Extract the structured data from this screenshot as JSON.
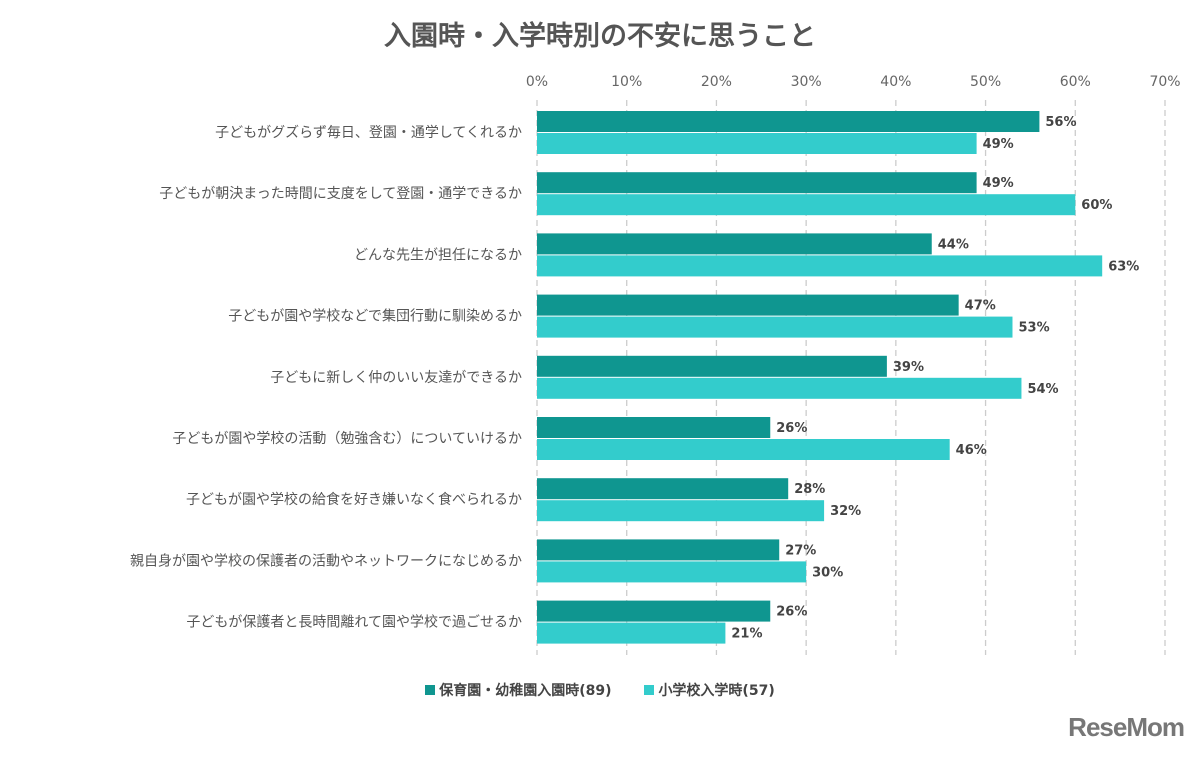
{
  "chart_data": {
    "type": "bar",
    "orientation": "horizontal",
    "title": "入園時・入学時別の不安に思うこと",
    "categories": [
      "子どもがグズらず毎日、登園・通学してくれるか",
      "子どもが朝決まった時間に支度をして登園・通学できるか",
      "どんな先生が担任になるか",
      "子どもが園や学校などで集団行動に馴染めるか",
      "子どもに新しく仲のいい友達ができるか",
      "子どもが園や学校の活動（勉強含む）についていけるか",
      "子どもが園や学校の給食を好き嫌いなく食べられるか",
      "親自身が園や学校の保護者の活動やネットワークになじめるか",
      "子どもが保護者と長時間離れて園や学校で過ごせるか"
    ],
    "series": [
      {
        "name": "保育園・幼稚園入園時(89)",
        "color": "#0f9690",
        "values": [
          56,
          49,
          44,
          47,
          39,
          26,
          28,
          27,
          26
        ]
      },
      {
        "name": "小学校入学時(57)",
        "color": "#33cccc",
        "values": [
          49,
          60,
          63,
          53,
          54,
          46,
          32,
          30,
          21
        ]
      }
    ],
    "xlim": [
      0,
      70
    ],
    "xticks": [
      "0%",
      "10%",
      "20%",
      "30%",
      "40%",
      "50%",
      "60%",
      "70%"
    ],
    "value_suffix": "%",
    "grid": "vertical dashed",
    "legend_position": "bottom"
  },
  "logo": "ReseMom"
}
